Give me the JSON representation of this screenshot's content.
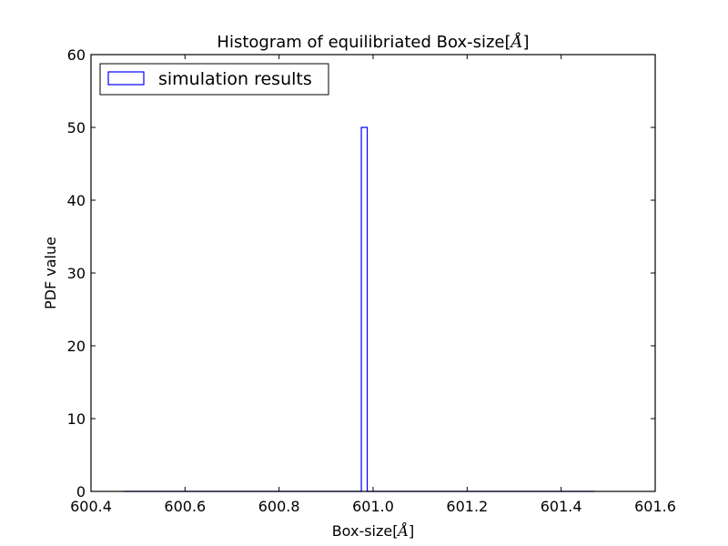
{
  "chart_data": {
    "type": "bar",
    "title": {
      "prefix": "Histogram of equilibriated Box-size[",
      "math": "Å",
      "suffix": "]"
    },
    "xlabel": {
      "prefix": "Box-size[",
      "math": "Å",
      "suffix": "]"
    },
    "ylabel": "PDF value",
    "xlim": [
      600.4,
      601.6
    ],
    "ylim": [
      0,
      60
    ],
    "xticks": [
      "600.4",
      "600.6",
      "600.8",
      "601.0",
      "601.2",
      "601.4",
      "601.6"
    ],
    "xtick_values": [
      600.4,
      600.6,
      600.8,
      601.0,
      601.2,
      601.4,
      601.6
    ],
    "yticks": [
      "0",
      "10",
      "20",
      "30",
      "40",
      "50",
      "60"
    ],
    "ytick_values": [
      0,
      10,
      20,
      30,
      40,
      50,
      60
    ],
    "histtype": "step",
    "bins": {
      "start": 600.47,
      "end": 601.47,
      "nbins": 80
    },
    "peak": {
      "x_start": 600.975,
      "x_end": 600.9875,
      "value": 50
    },
    "series": [
      {
        "name": "simulation results",
        "color": "#0000ff"
      }
    ],
    "legend": {
      "position": "top-left"
    },
    "grid": false
  }
}
